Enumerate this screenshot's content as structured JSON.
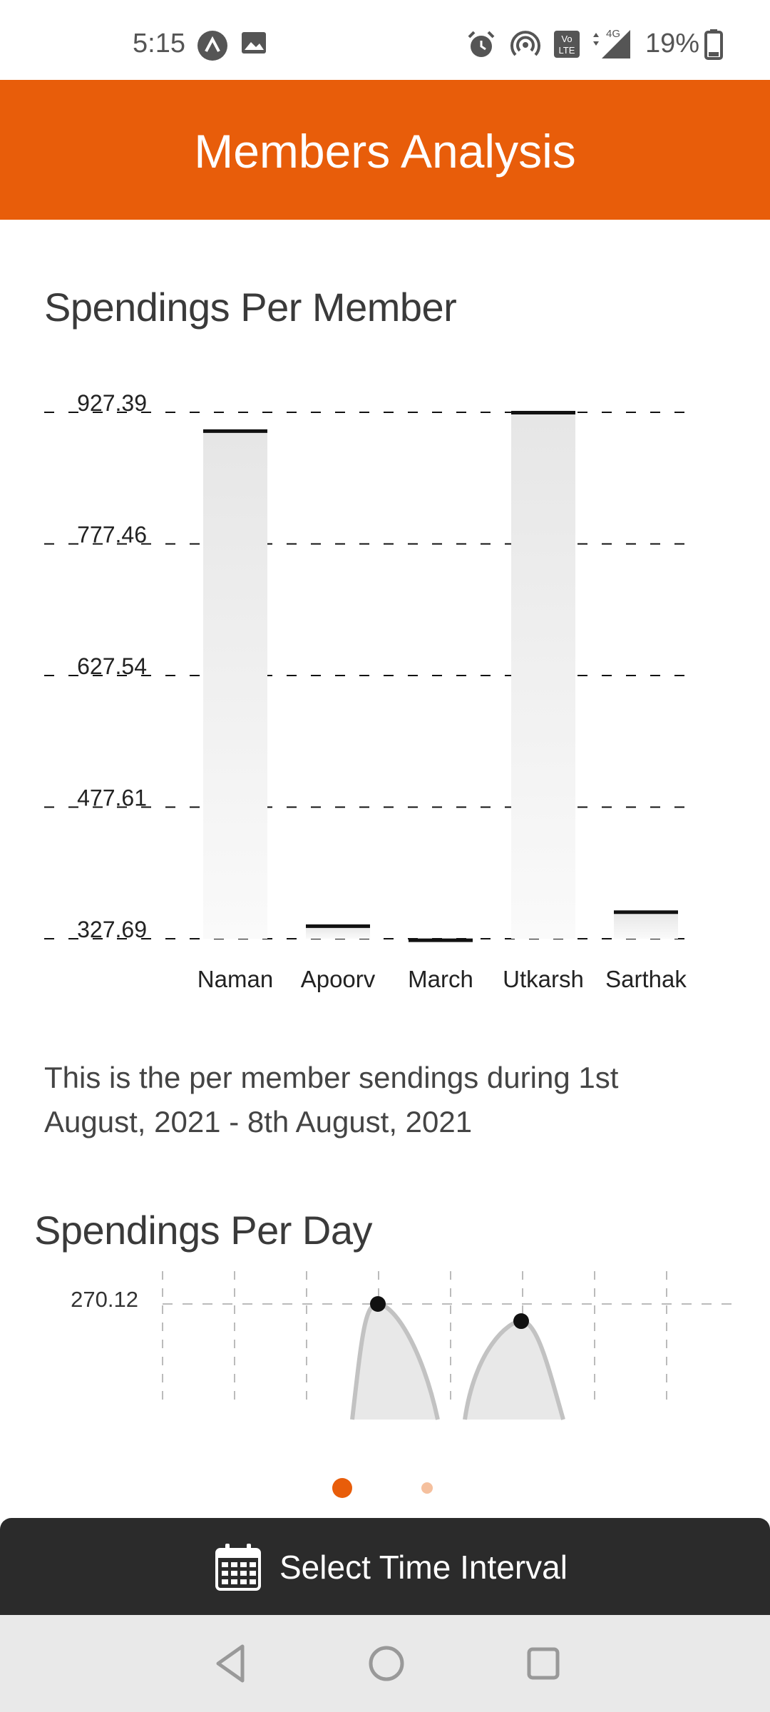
{
  "status_bar": {
    "time": "5:15",
    "battery": "19%",
    "icons": [
      "app-icon",
      "image-icon",
      "alarm-icon",
      "hotspot-icon",
      "volte-icon",
      "signal-4g-icon",
      "battery-icon"
    ],
    "network_label": "4G"
  },
  "app_bar": {
    "title": "Members Analysis",
    "color": "#E85D0A"
  },
  "section_member": {
    "title": "Spendings Per Member"
  },
  "section_day": {
    "title": "Spendings Per Day"
  },
  "description": "This is the per member sendings during 1st August, 2021 - 8th August, 2021",
  "pager": {
    "pages": 2,
    "active_index": 0,
    "active_color": "#E85D0A",
    "inactive_color": "#F5C09E"
  },
  "bottom_button": {
    "label": "Select Time Interval",
    "icon": "calendar-icon"
  },
  "nav_bar": {
    "icons": [
      "back-icon",
      "home-icon",
      "recents-icon"
    ]
  },
  "chart_data": [
    {
      "type": "bar",
      "title": "Spendings Per Member",
      "categories": [
        "Naman",
        "Apoorv",
        "March",
        "Utkarsh",
        "Sarthak"
      ],
      "values": [
        906,
        342,
        326,
        927,
        358
      ],
      "y_ticks": [
        "927.39",
        "777.46",
        "627.54",
        "477.61",
        "327.69"
      ],
      "ylim": [
        327.69,
        927.39
      ],
      "grid": true
    },
    {
      "type": "area",
      "title": "Spendings Per Day",
      "y_ticks": [
        "270.12"
      ],
      "peaks": [
        270.12,
        230
      ],
      "grid": true
    }
  ]
}
